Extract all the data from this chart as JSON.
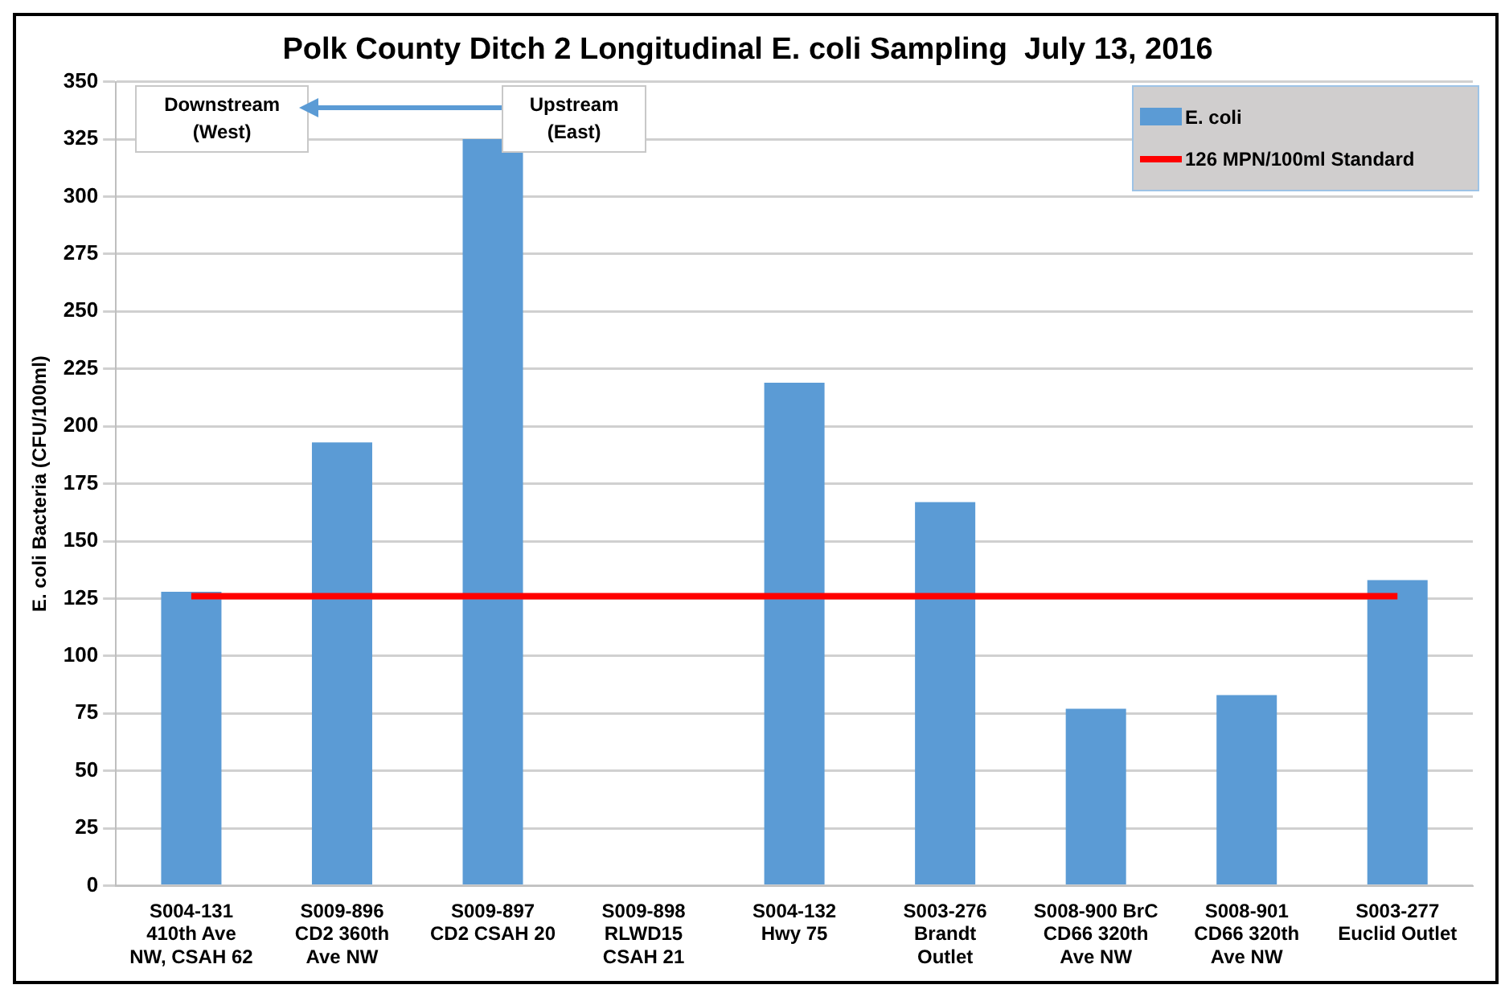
{
  "chart_data": {
    "type": "bar",
    "title": "Polk County Ditch 2 Longitudinal E. coli Sampling  July 13, 2016",
    "ylabel": "E. coli Bacteria (CFU/100ml)",
    "categories": [
      "S004-131\n410th Ave\nNW, CSAH 62",
      "S009-896\nCD2 360th\nAve NW",
      "S009-897\nCD2 CSAH 20",
      "S009-898\nRLWD15\nCSAH 21",
      "S004-132\nHwy 75",
      "S003-276\nBrandt\nOutlet",
      "S008-900 BrC\nCD66 320th\nAve NW",
      "S008-901\nCD66 320th\nAve NW",
      "S003-277\nEuclid Outlet"
    ],
    "series": [
      {
        "name": "E. coli",
        "color": "#5b9bd5",
        "values": [
          128,
          193,
          325,
          null,
          219,
          167,
          77,
          83,
          133
        ]
      },
      {
        "name": "126 MPN/100ml Standard",
        "type": "line",
        "color": "#ff0000",
        "values": [
          126,
          126,
          126,
          126,
          126,
          126,
          126,
          126,
          126
        ]
      }
    ],
    "ylim": [
      0,
      350
    ],
    "yticks": [
      0,
      25,
      50,
      75,
      100,
      125,
      150,
      175,
      200,
      225,
      250,
      275,
      300,
      325,
      350
    ],
    "grid": "y",
    "legend": "top right",
    "marker": "none",
    "annotations": [
      "Downstream\n(West)",
      "Upstream\n(East)"
    ]
  }
}
